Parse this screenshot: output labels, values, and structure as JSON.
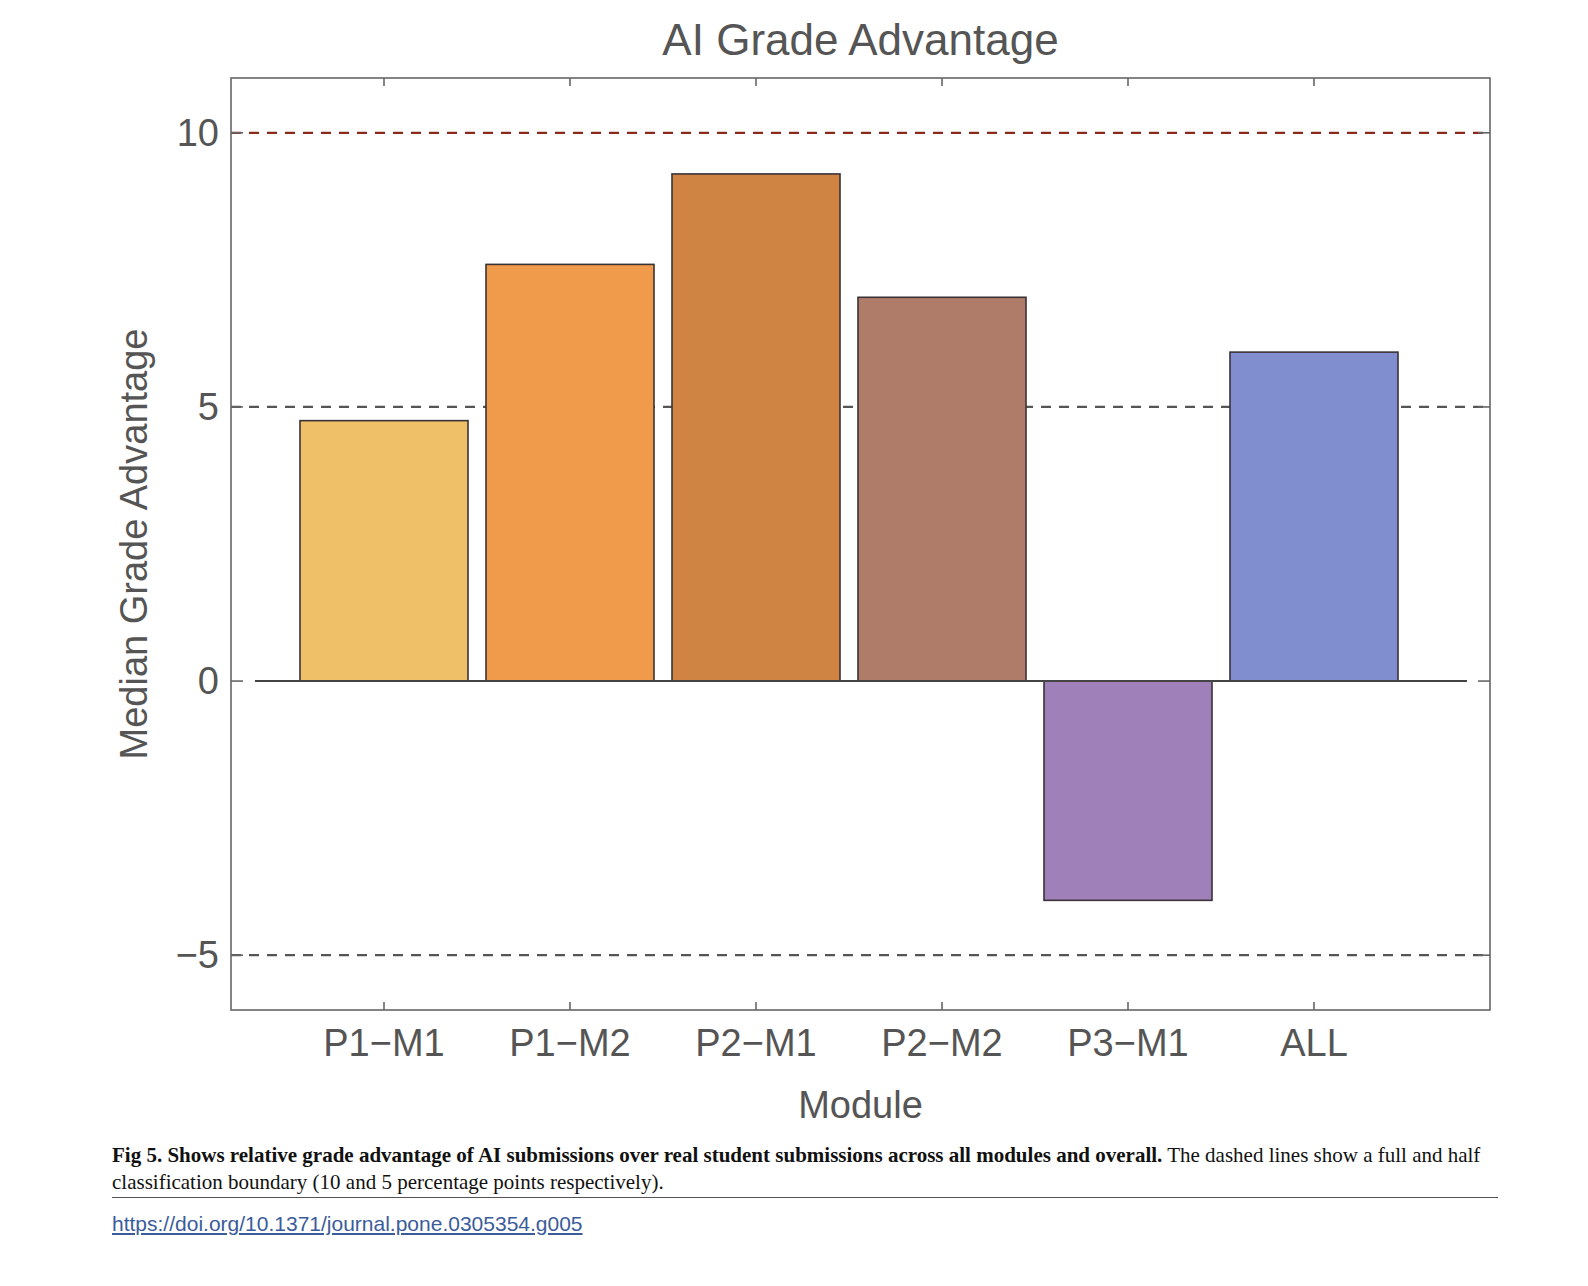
{
  "chart_data": {
    "type": "bar",
    "title": "AI Grade Advantage",
    "x_label": "Module",
    "y_label": "Median Grade Advantage",
    "categories": [
      "P1−M1",
      "P1−M2",
      "P2−M1",
      "P2−M2",
      "P3−M1",
      "ALL"
    ],
    "values": [
      4.75,
      7.6,
      9.25,
      7.0,
      -4.0,
      6.0
    ],
    "colors": [
      "#f0c068",
      "#f09a4c",
      "#d08443",
      "#b07c6a",
      "#a080b8",
      "#808dcf"
    ],
    "ylim": [
      -6,
      11
    ],
    "yticks": [
      {
        "value": -5,
        "label": "−5"
      },
      0,
      5,
      10
    ],
    "reference_lines": [
      {
        "value": 10,
        "color": "#8b2a1a",
        "line_style": "dashed"
      },
      {
        "value": 5,
        "color": "#555555",
        "line_style": "dashed"
      },
      {
        "value": -5,
        "color": "#555555",
        "line_style": "dashed"
      }
    ],
    "caption_title": "Fig 5. Shows relative grade advantage of AI submissions over real student submissions across all modules and overall.",
    "caption_text": "The dashed lines show a full and half classification boundary (10 and 5 percentage points respectively).",
    "doi": "https://doi.org/10.1371/journal.pone.0305354.g005"
  }
}
